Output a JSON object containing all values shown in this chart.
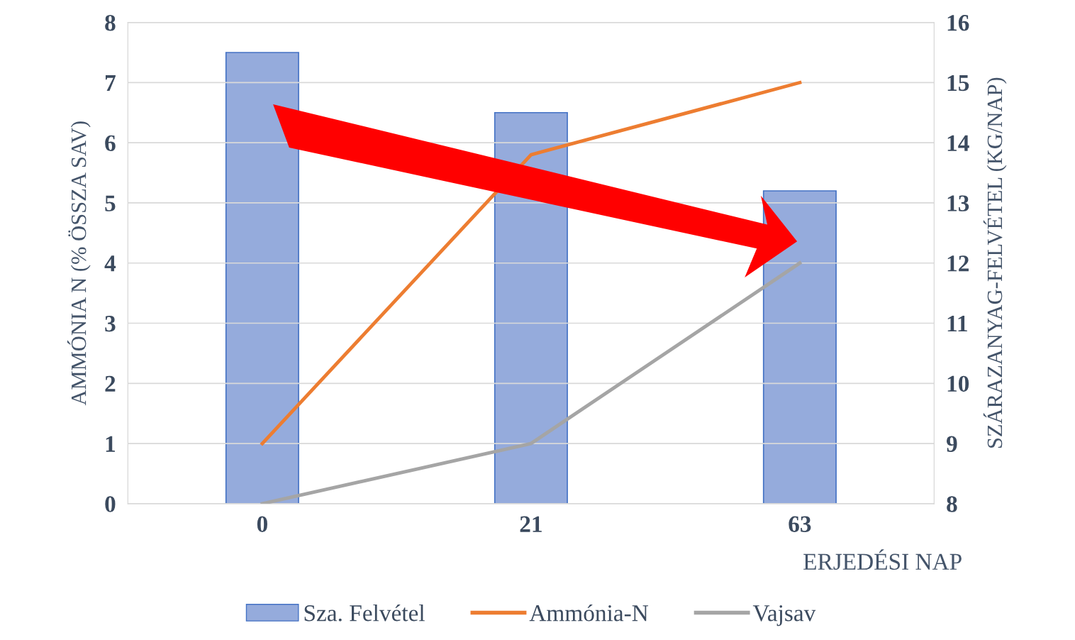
{
  "chart_data": {
    "type": "bar",
    "categories": [
      "0",
      "21",
      "63"
    ],
    "xlabel": "ERJEDÉSI NAP",
    "ylabel": "AMMÓNIA N (% ÖSSZA SAV)",
    "y2label": "SZÁRAZANYAG-FELVÉTEL (KG/NAP)",
    "ylim": [
      0,
      8
    ],
    "yticks": [
      0,
      1,
      2,
      3,
      4,
      5,
      6,
      7,
      8
    ],
    "y2lim": [
      8,
      16
    ],
    "y2ticks": [
      8,
      9,
      10,
      11,
      12,
      13,
      14,
      15,
      16
    ],
    "grid": "y",
    "legend": "bottom",
    "series": [
      {
        "name": "Sza. Felvétel",
        "axis": "y2",
        "color": "#95abdc",
        "values": [
          15.5,
          14.5,
          13.2
        ]
      },
      {
        "name": "Ammónia-N",
        "type": "line",
        "color": "#ed7d31",
        "values": [
          1,
          5.8,
          7.0
        ]
      },
      {
        "name": "Vajsav",
        "type": "line",
        "color": "#a5a5a5",
        "values": [
          0,
          1,
          4
        ]
      }
    ]
  }
}
